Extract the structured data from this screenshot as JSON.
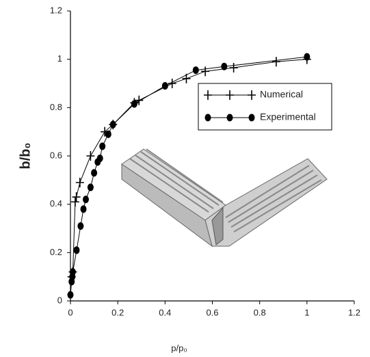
{
  "chart_data": {
    "type": "line",
    "x_label": "p/p₀",
    "y_label": "b/b₀",
    "xlim": [
      0,
      1.2
    ],
    "xticks": [
      0,
      0.2,
      0.4,
      0.6,
      0.8,
      1,
      1.2
    ],
    "ylim": [
      0,
      1.2
    ],
    "yticks": [
      0,
      0.2,
      0.4,
      0.6,
      0.8,
      1,
      1.2
    ],
    "legend": "upper right",
    "series": [
      {
        "name": "Numerical",
        "color": "#000000",
        "marker": "plus",
        "x": [
          0.005,
          0.01,
          0.02,
          0.025,
          0.04,
          0.085,
          0.145,
          0.18,
          0.27,
          0.29,
          0.43,
          0.49,
          0.57,
          0.69,
          0.87,
          1.0
        ],
        "values": [
          0.1,
          0.12,
          0.41,
          0.43,
          0.49,
          0.6,
          0.7,
          0.73,
          0.82,
          0.83,
          0.9,
          0.92,
          0.95,
          0.965,
          0.99,
          1.0
        ]
      },
      {
        "name": "Experimental",
        "color": "#000000",
        "marker": "circle",
        "x": [
          0,
          0.005,
          0.008,
          0.01,
          0.026,
          0.043,
          0.055,
          0.065,
          0.085,
          0.1,
          0.115,
          0.125,
          0.135,
          0.16,
          0.18,
          0.27,
          0.4,
          0.53,
          0.65,
          1.0
        ],
        "values": [
          0.025,
          0.08,
          0.1,
          0.12,
          0.21,
          0.31,
          0.38,
          0.42,
          0.47,
          0.53,
          0.575,
          0.59,
          0.64,
          0.69,
          0.73,
          0.815,
          0.89,
          0.955,
          0.97,
          1.01
        ]
      }
    ]
  }
}
